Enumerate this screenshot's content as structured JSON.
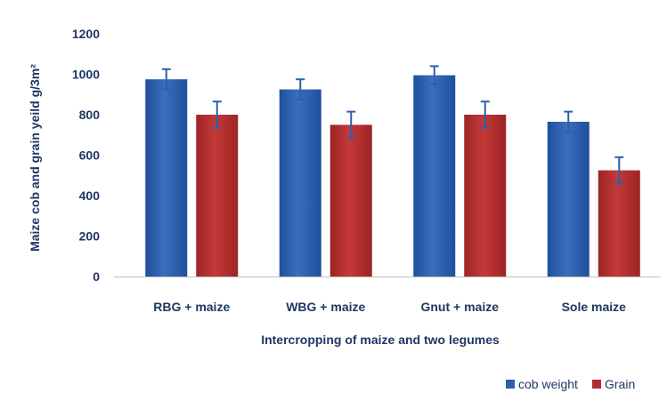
{
  "chart_data": {
    "type": "bar",
    "title": "",
    "xlabel": "Intercropping of maize and two legumes",
    "ylabel": "Maize  cob and grain yeild g/3m²",
    "ylim": [
      0,
      1200
    ],
    "yticks": [
      "0",
      "200",
      "400",
      "600",
      "800",
      "1000",
      "1200"
    ],
    "categories": [
      "RBG + maize",
      "WBG + maize",
      "Gnut + maize",
      "Sole maize"
    ],
    "series": [
      {
        "name": "cob weight",
        "color": "#2e5fae",
        "values": [
          975,
          925,
          995,
          765
        ],
        "errors": [
          50,
          50,
          45,
          50
        ]
      },
      {
        "name": "Grain",
        "color": "#b12f2e",
        "values": [
          800,
          750,
          800,
          525
        ],
        "errors": [
          65,
          65,
          65,
          65
        ]
      }
    ],
    "grid": false,
    "legend": "bottom-right",
    "error_bars": true
  }
}
